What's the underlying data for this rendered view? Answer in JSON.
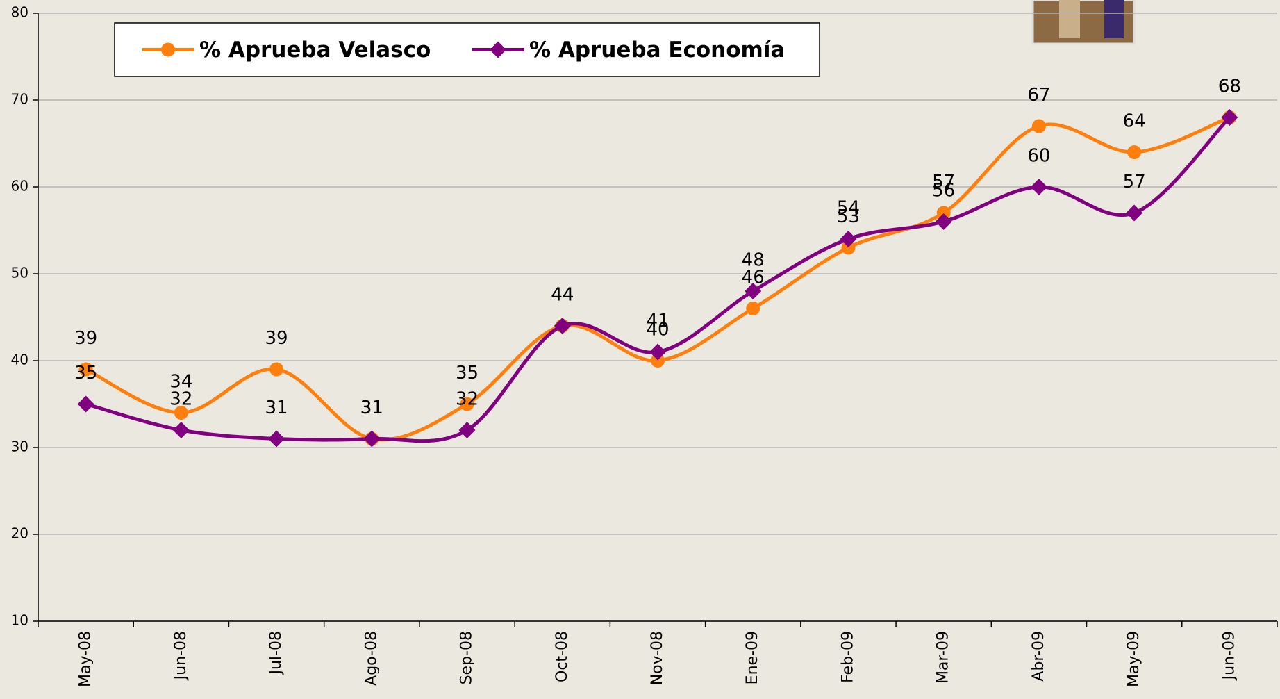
{
  "chart_data": {
    "type": "line",
    "categories": [
      "May-08",
      "Jun-08",
      "Jul-08",
      "Ago-08",
      "Sep-08",
      "Oct-08",
      "Nov-08",
      "Ene-09",
      "Feb-09",
      "Mar-09",
      "Abr-09",
      "May-09",
      "Jun-09"
    ],
    "series": [
      {
        "name": "% Aprueba Velasco",
        "color": "#ff7f0e",
        "marker": "circle",
        "values": [
          39,
          34,
          39,
          31,
          35,
          44,
          40,
          46,
          53,
          57,
          67,
          64,
          68
        ]
      },
      {
        "name": "% Aprueba Economía",
        "color": "#800080",
        "marker": "diamond",
        "values": [
          35,
          32,
          31,
          31,
          32,
          44,
          41,
          48,
          54,
          56,
          60,
          57,
          68
        ]
      }
    ],
    "ylim": [
      10,
      80
    ],
    "yticks": [
      10,
      20,
      30,
      40,
      50,
      60,
      70,
      80
    ],
    "grid": true,
    "legend": "top-left"
  }
}
